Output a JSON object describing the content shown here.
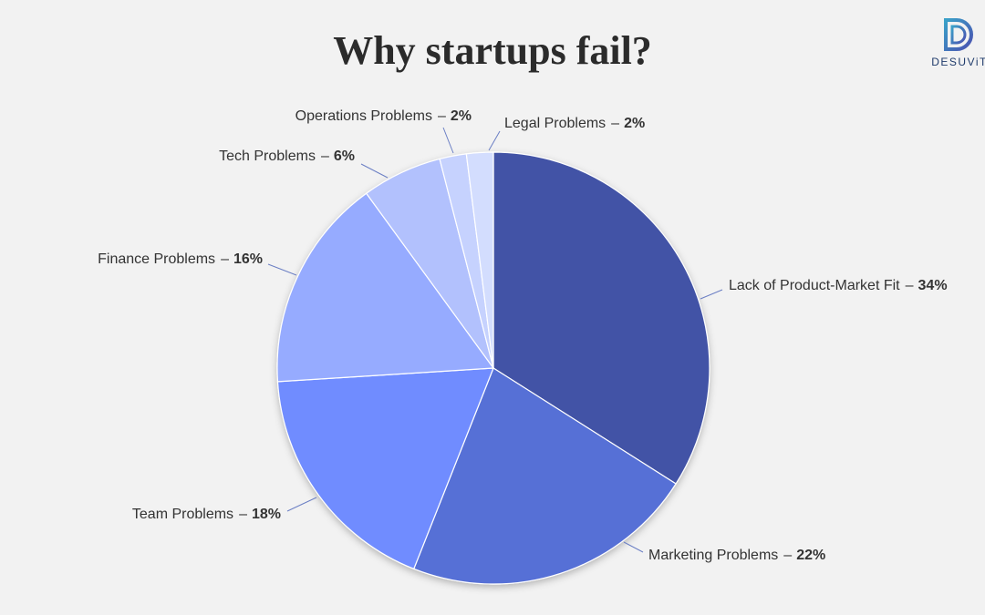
{
  "chart_data": {
    "type": "pie",
    "title": "Why startups fail?",
    "logo": "DESUViT",
    "categories": [
      "Lack of Product-Market Fit",
      "Marketing Problems",
      "Team Problems",
      "Finance Problems",
      "Tech Problems",
      "Operations Problems",
      "Legal Problems"
    ],
    "values": [
      34,
      22,
      18,
      16,
      6,
      2,
      2
    ],
    "value_labels": [
      "34%",
      "22%",
      "18%",
      "16%",
      "6%",
      "2%",
      "2%"
    ],
    "label_separator": "–",
    "colors": [
      "#4353a6",
      "#566fd6",
      "#6f8cff",
      "#96abff",
      "#b2c1fd",
      "#c6d2fe",
      "#d3ddfe"
    ]
  }
}
